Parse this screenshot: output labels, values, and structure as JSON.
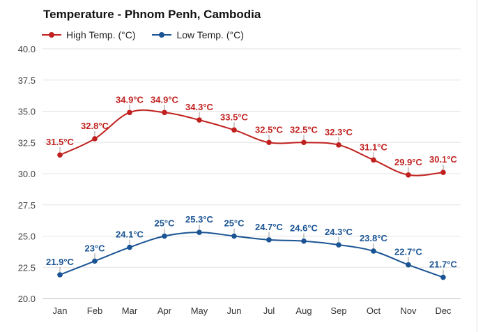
{
  "chart_data": {
    "type": "line",
    "title": "Temperature - Phnom Penh, Cambodia",
    "categories": [
      "Jan",
      "Feb",
      "Mar",
      "Apr",
      "May",
      "Jun",
      "Jul",
      "Aug",
      "Sep",
      "Oct",
      "Nov",
      "Dec"
    ],
    "series": [
      {
        "name": "High Temp. (°C)",
        "color": "#c0211f",
        "values": [
          31.5,
          32.8,
          34.9,
          34.9,
          34.3,
          33.5,
          32.5,
          32.5,
          32.3,
          31.1,
          29.9,
          30.1
        ],
        "labels": [
          "31.5°C",
          "32.8°C",
          "34.9°C",
          "34.9°C",
          "34.3°C",
          "33.5°C",
          "32.5°C",
          "32.5°C",
          "32.3°C",
          "31.1°C",
          "29.9°C",
          "30.1°C"
        ]
      },
      {
        "name": "Low Temp. (°C)",
        "color": "#1a5494",
        "values": [
          21.9,
          23,
          24.1,
          25,
          25.3,
          25,
          24.7,
          24.6,
          24.3,
          23.8,
          22.7,
          21.7
        ],
        "labels": [
          "21.9°C",
          "23°C",
          "24.1°C",
          "25°C",
          "25.3°C",
          "25°C",
          "24.7°C",
          "24.6°C",
          "24.3°C",
          "23.8°C",
          "22.7°C",
          "21.7°C"
        ]
      }
    ],
    "yticks": [
      "20.0",
      "22.5",
      "25.0",
      "27.5",
      "30.0",
      "32.5",
      "35.0",
      "37.5",
      "40.0"
    ],
    "ylim": [
      20,
      40
    ],
    "grid": true,
    "legend_position": "top-left"
  }
}
